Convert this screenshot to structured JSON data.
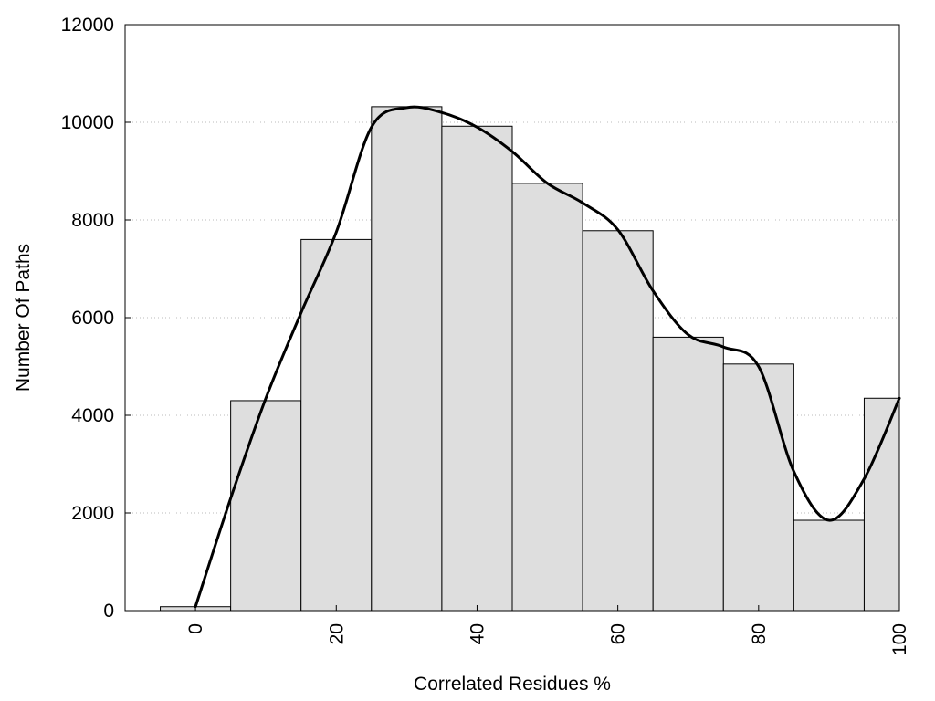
{
  "chart_data": {
    "type": "bar",
    "title": "",
    "xlabel": "Correlated Residues %",
    "ylabel": "Number Of Paths",
    "x": [
      0,
      10,
      20,
      30,
      40,
      50,
      60,
      70,
      80,
      90,
      100
    ],
    "bin_width": 10,
    "values": [
      80,
      4300,
      7600,
      10320,
      9920,
      8750,
      7780,
      5600,
      5050,
      1850,
      4350
    ],
    "xlim": [
      -10,
      100
    ],
    "ylim": [
      0,
      12000
    ],
    "x_ticks": [
      0,
      20,
      40,
      60,
      80,
      100
    ],
    "y_ticks": [
      0,
      2000,
      4000,
      6000,
      8000,
      10000,
      12000
    ],
    "grid": "horizontal dotted",
    "colors": {
      "bar_fill": "#dedede",
      "bar_stroke": "#000000",
      "curve": "#000000",
      "grid": "#bbbbbb"
    },
    "curve": {
      "x": [
        0,
        5,
        10,
        15,
        20,
        25,
        30,
        35,
        40,
        45,
        50,
        55,
        60,
        65,
        70,
        75,
        80,
        85,
        90,
        95,
        100
      ],
      "y": [
        80,
        2300,
        4350,
        6100,
        7750,
        9900,
        10300,
        10200,
        9900,
        9400,
        8750,
        8350,
        7800,
        6550,
        5650,
        5400,
        5000,
        2850,
        1850,
        2700,
        4350
      ]
    }
  }
}
